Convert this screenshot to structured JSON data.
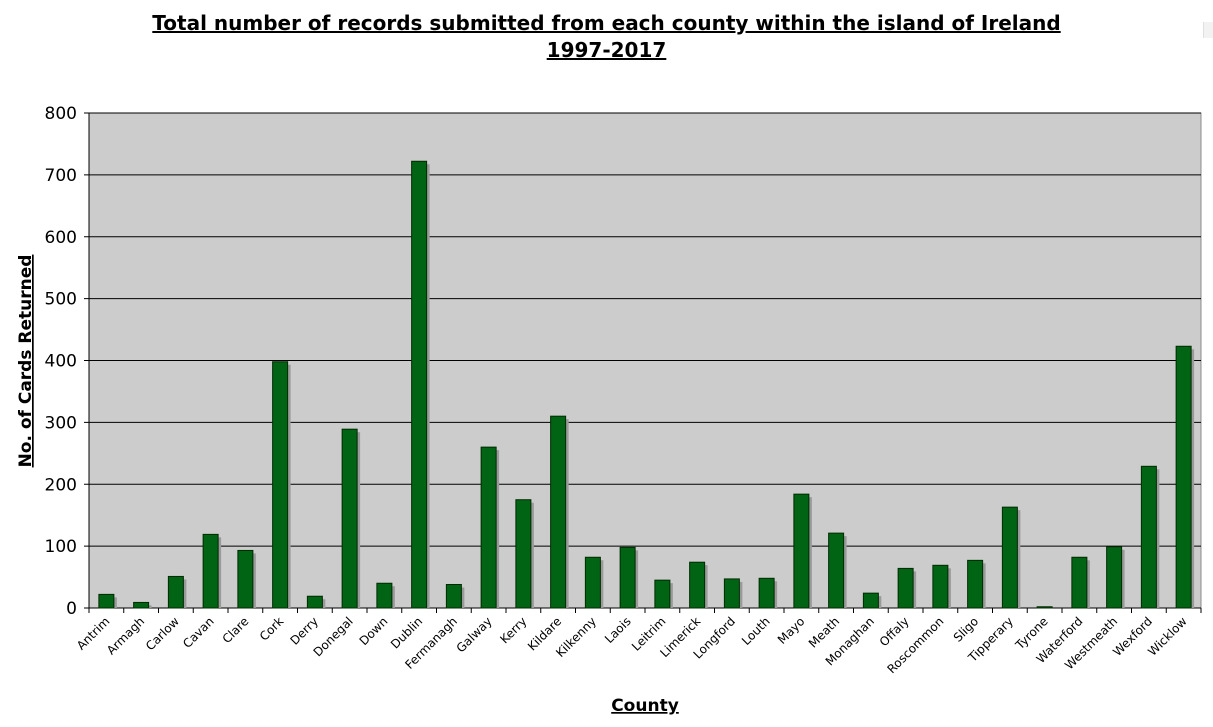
{
  "chart_data": {
    "type": "bar",
    "title_line1": "Total number of records submitted from each county within the island of Ireland",
    "title_line2": "1997-2017",
    "xlabel": "County",
    "ylabel": "No. of Cards Returned",
    "ylim": [
      0,
      800
    ],
    "yticks": [
      0,
      100,
      200,
      300,
      400,
      500,
      600,
      700,
      800
    ],
    "grid": true,
    "colors": {
      "bar": "#006414",
      "bar_stroke": "#002b00",
      "shadow": "#9a9a9a",
      "plot_bg": "#cccccc"
    },
    "categories": [
      "Antrim",
      "Armagh",
      "Carlow",
      "Cavan",
      "Clare",
      "Cork",
      "Derry",
      "Donegal",
      "Down",
      "Dublin",
      "Fermanagh",
      "Galway",
      "Kerry",
      "Kildare",
      "Kilkenny",
      "Laois",
      "Leitrim",
      "Limerick",
      "Longford",
      "Louth",
      "Mayo",
      "Meath",
      "Monaghan",
      "Offaly",
      "Roscommon",
      "Sligo",
      "Tipperary",
      "Tyrone",
      "Waterford",
      "Westmeath",
      "Wexford",
      "Wicklow"
    ],
    "values": [
      22,
      9,
      51,
      119,
      93,
      398,
      19,
      289,
      40,
      722,
      38,
      260,
      175,
      310,
      82,
      98,
      45,
      74,
      47,
      48,
      184,
      121,
      24,
      64,
      69,
      77,
      163,
      2,
      82,
      99,
      229,
      423
    ]
  }
}
